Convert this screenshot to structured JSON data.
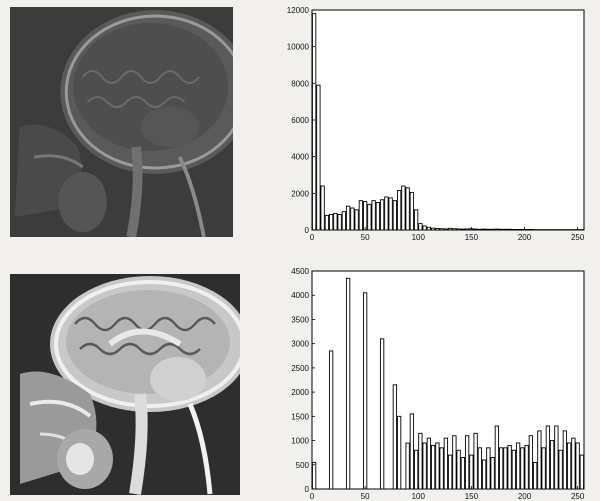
{
  "chart_data": [
    {
      "type": "bar",
      "title": "",
      "xlabel": "",
      "ylabel": "",
      "xlim": [
        0,
        256
      ],
      "ylim": [
        0,
        12000
      ],
      "grid": false,
      "x_ticks": [
        "0",
        "50",
        "100",
        "150",
        "200",
        "250"
      ],
      "y_ticks": [
        "0",
        "2000",
        "4000",
        "6000",
        "8000",
        "10000",
        "12000"
      ],
      "x": [
        2,
        6,
        10,
        14,
        18,
        22,
        26,
        30,
        34,
        38,
        42,
        46,
        50,
        54,
        58,
        62,
        66,
        70,
        74,
        78,
        82,
        86,
        90,
        94,
        98,
        102,
        106,
        110,
        114,
        118,
        122,
        126,
        130,
        134,
        138,
        142,
        146,
        150,
        154,
        158,
        162,
        166,
        170,
        174,
        178,
        182,
        186,
        190,
        194,
        198,
        202,
        206,
        210,
        214,
        218,
        222,
        226,
        230,
        234,
        238,
        242,
        246,
        250,
        254
      ],
      "values": [
        11800,
        7900,
        2400,
        800,
        850,
        900,
        850,
        1000,
        1300,
        1200,
        1100,
        1600,
        1550,
        1400,
        1600,
        1500,
        1650,
        1800,
        1750,
        1600,
        2150,
        2400,
        2300,
        2050,
        1100,
        350,
        220,
        150,
        100,
        80,
        70,
        60,
        90,
        70,
        60,
        50,
        60,
        70,
        50,
        40,
        50,
        40,
        40,
        50,
        40,
        40,
        40,
        30,
        30,
        30,
        30,
        30,
        20,
        20,
        20,
        20,
        20,
        20,
        20,
        20,
        20,
        20,
        20,
        20
      ]
    },
    {
      "type": "bar",
      "title": "",
      "xlabel": "",
      "ylabel": "",
      "xlim": [
        0,
        256
      ],
      "ylim": [
        0,
        4500
      ],
      "grid": false,
      "x_ticks": [
        "0",
        "50",
        "100",
        "150",
        "200",
        "250"
      ],
      "y_ticks": [
        "0",
        "500",
        "1000",
        "1500",
        "2000",
        "2500",
        "3000",
        "3500",
        "4000",
        "4500"
      ],
      "x": [
        2,
        6,
        10,
        14,
        18,
        22,
        26,
        30,
        34,
        38,
        42,
        46,
        50,
        54,
        58,
        62,
        66,
        70,
        74,
        78,
        82,
        86,
        90,
        94,
        98,
        102,
        106,
        110,
        114,
        118,
        122,
        126,
        130,
        134,
        138,
        142,
        146,
        150,
        154,
        158,
        162,
        166,
        170,
        174,
        178,
        182,
        186,
        190,
        194,
        198,
        202,
        206,
        210,
        214,
        218,
        222,
        226,
        230,
        234,
        238,
        242,
        246,
        250,
        254
      ],
      "values": [
        550,
        0,
        0,
        0,
        2850,
        0,
        0,
        0,
        4350,
        0,
        0,
        0,
        4050,
        0,
        0,
        0,
        3100,
        0,
        0,
        2150,
        1500,
        0,
        950,
        1550,
        800,
        1150,
        950,
        1050,
        900,
        950,
        850,
        1050,
        700,
        1100,
        800,
        650,
        1100,
        700,
        1150,
        850,
        600,
        850,
        650,
        1300,
        850,
        850,
        900,
        800,
        950,
        850,
        900,
        1100,
        550,
        1200,
        850,
        1300,
        1000,
        1300,
        800,
        1200,
        950,
        1050,
        950,
        700
      ]
    }
  ],
  "images": {
    "top": "mri-sagittal-dark",
    "bottom": "mri-sagittal-equalized"
  }
}
